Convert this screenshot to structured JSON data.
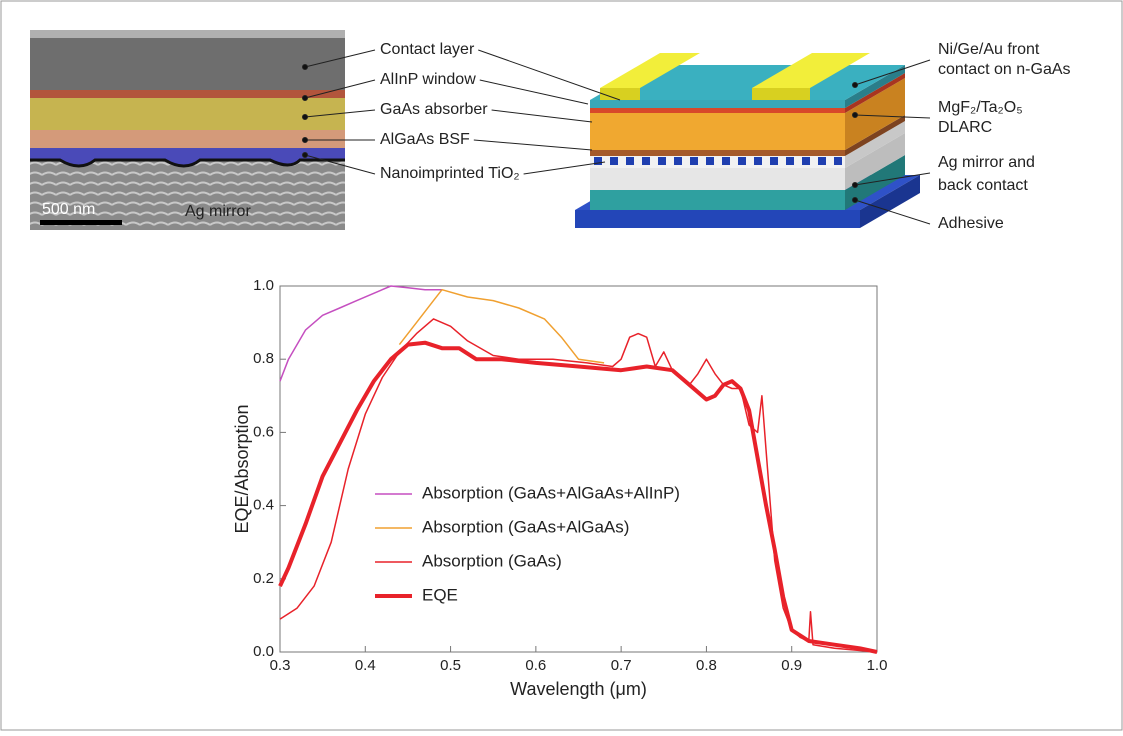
{
  "sem_image": {
    "labels": [
      "Contact layer",
      "AlInP window",
      "GaAs absorber",
      "AlGaAs BSF",
      "Nanoimprinted TiO₂"
    ],
    "scale_bar": "500 nm",
    "region_label": "Ag mirror"
  },
  "device_diagram": {
    "labels": [
      [
        "Ni/Ge/Au front",
        "contact on n-GaAs"
      ],
      [
        "MgF₂/Ta₂O₅",
        "DLARC"
      ],
      [
        "Ag mirror and",
        "back contact"
      ],
      [
        "Adhesive"
      ]
    ]
  },
  "chart_data": {
    "type": "line",
    "xlabel": "Wavelength (μm)",
    "ylabel": "EQE/Absorption",
    "xlim": [
      0.3,
      1.0
    ],
    "ylim": [
      0,
      1.0
    ],
    "xticks": [
      0.3,
      0.4,
      0.5,
      0.6,
      0.7,
      0.8,
      0.9,
      {
        "value": 1.0,
        "label": "1.0"
      }
    ],
    "yticks": [
      {
        "value": 0,
        "label": "0.0"
      },
      0.2,
      0.4,
      0.6,
      0.8,
      {
        "value": 1.0,
        "label": "1.0"
      }
    ],
    "legend": "center left",
    "series": [
      {
        "name": "Absorption (GaAs+AlGaAs+AlInP)",
        "color": "#c54fc0",
        "linewidth": 1.5,
        "x": [
          0.3,
          0.31,
          0.33,
          0.35,
          0.37,
          0.39,
          0.41,
          0.43,
          0.45,
          0.47,
          0.49
        ],
        "values": [
          0.74,
          0.8,
          0.88,
          0.92,
          0.94,
          0.96,
          0.98,
          1.0,
          0.995,
          0.99,
          0.99
        ]
      },
      {
        "name": "Absorption (GaAs+AlGaAs)",
        "color": "#f0a030",
        "linewidth": 1.5,
        "x": [
          0.44,
          0.46,
          0.48,
          0.49,
          0.52,
          0.55,
          0.58,
          0.61,
          0.63,
          0.65,
          0.68
        ],
        "values": [
          0.84,
          0.9,
          0.96,
          0.99,
          0.97,
          0.96,
          0.94,
          0.91,
          0.86,
          0.8,
          0.79
        ]
      },
      {
        "name": "Absorption (GaAs)",
        "color": "#e8222a",
        "linewidth": 1.5,
        "x": [
          0.3,
          0.32,
          0.34,
          0.36,
          0.38,
          0.4,
          0.42,
          0.44,
          0.46,
          0.48,
          0.5,
          0.52,
          0.55,
          0.58,
          0.62,
          0.66,
          0.69,
          0.7,
          0.71,
          0.72,
          0.73,
          0.74,
          0.75,
          0.76,
          0.77,
          0.78,
          0.79,
          0.8,
          0.81,
          0.82,
          0.83,
          0.84,
          0.85,
          0.86,
          0.865,
          0.87,
          0.88,
          0.89,
          0.9,
          0.91,
          0.92,
          0.922,
          0.925,
          0.95,
          1.0
        ],
        "values": [
          0.09,
          0.12,
          0.18,
          0.3,
          0.5,
          0.65,
          0.75,
          0.82,
          0.87,
          0.91,
          0.89,
          0.85,
          0.81,
          0.8,
          0.8,
          0.79,
          0.78,
          0.8,
          0.86,
          0.87,
          0.86,
          0.78,
          0.82,
          0.77,
          0.75,
          0.73,
          0.76,
          0.8,
          0.76,
          0.73,
          0.72,
          0.72,
          0.62,
          0.6,
          0.7,
          0.55,
          0.25,
          0.12,
          0.06,
          0.04,
          0.03,
          0.11,
          0.02,
          0.01,
          0.0
        ]
      },
      {
        "name": "EQE",
        "color": "#e8222a",
        "linewidth": 4,
        "x": [
          0.3,
          0.31,
          0.33,
          0.35,
          0.37,
          0.39,
          0.41,
          0.43,
          0.45,
          0.47,
          0.49,
          0.51,
          0.53,
          0.56,
          0.6,
          0.65,
          0.7,
          0.73,
          0.76,
          0.78,
          0.8,
          0.81,
          0.82,
          0.83,
          0.84,
          0.85,
          0.86,
          0.87,
          0.88,
          0.89,
          0.9,
          0.92,
          0.95,
          0.98,
          1.0
        ],
        "values": [
          0.18,
          0.23,
          0.35,
          0.48,
          0.57,
          0.66,
          0.74,
          0.8,
          0.84,
          0.845,
          0.83,
          0.83,
          0.8,
          0.8,
          0.79,
          0.78,
          0.77,
          0.78,
          0.77,
          0.73,
          0.69,
          0.7,
          0.73,
          0.74,
          0.72,
          0.66,
          0.53,
          0.4,
          0.28,
          0.15,
          0.06,
          0.03,
          0.02,
          0.01,
          0.0
        ]
      }
    ]
  }
}
